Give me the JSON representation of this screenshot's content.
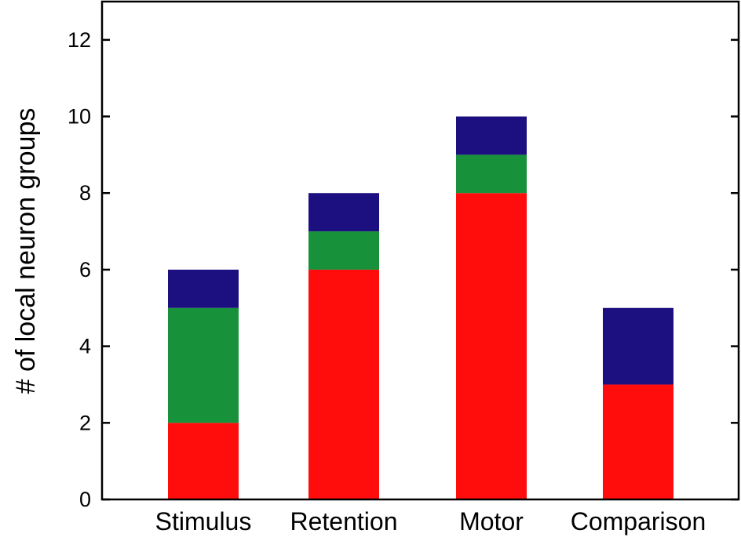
{
  "chart_data": {
    "type": "bar",
    "stacked": true,
    "title": "",
    "xlabel": "",
    "ylabel": "# of local neuron groups",
    "categories": [
      "Stimulus",
      "Retention",
      "Motor",
      "Comparison"
    ],
    "series": [
      {
        "color": "#ff0d0d",
        "values": [
          2,
          6,
          8,
          3
        ]
      },
      {
        "color": "#17913a",
        "values": [
          3,
          1,
          1,
          0
        ]
      },
      {
        "color": "#1c0f7f",
        "values": [
          1,
          1,
          1,
          2
        ]
      }
    ],
    "ylim": [
      0,
      13
    ],
    "yticks": [
      0,
      2,
      4,
      6,
      8,
      10,
      12
    ],
    "grid": false,
    "legend": "none"
  }
}
